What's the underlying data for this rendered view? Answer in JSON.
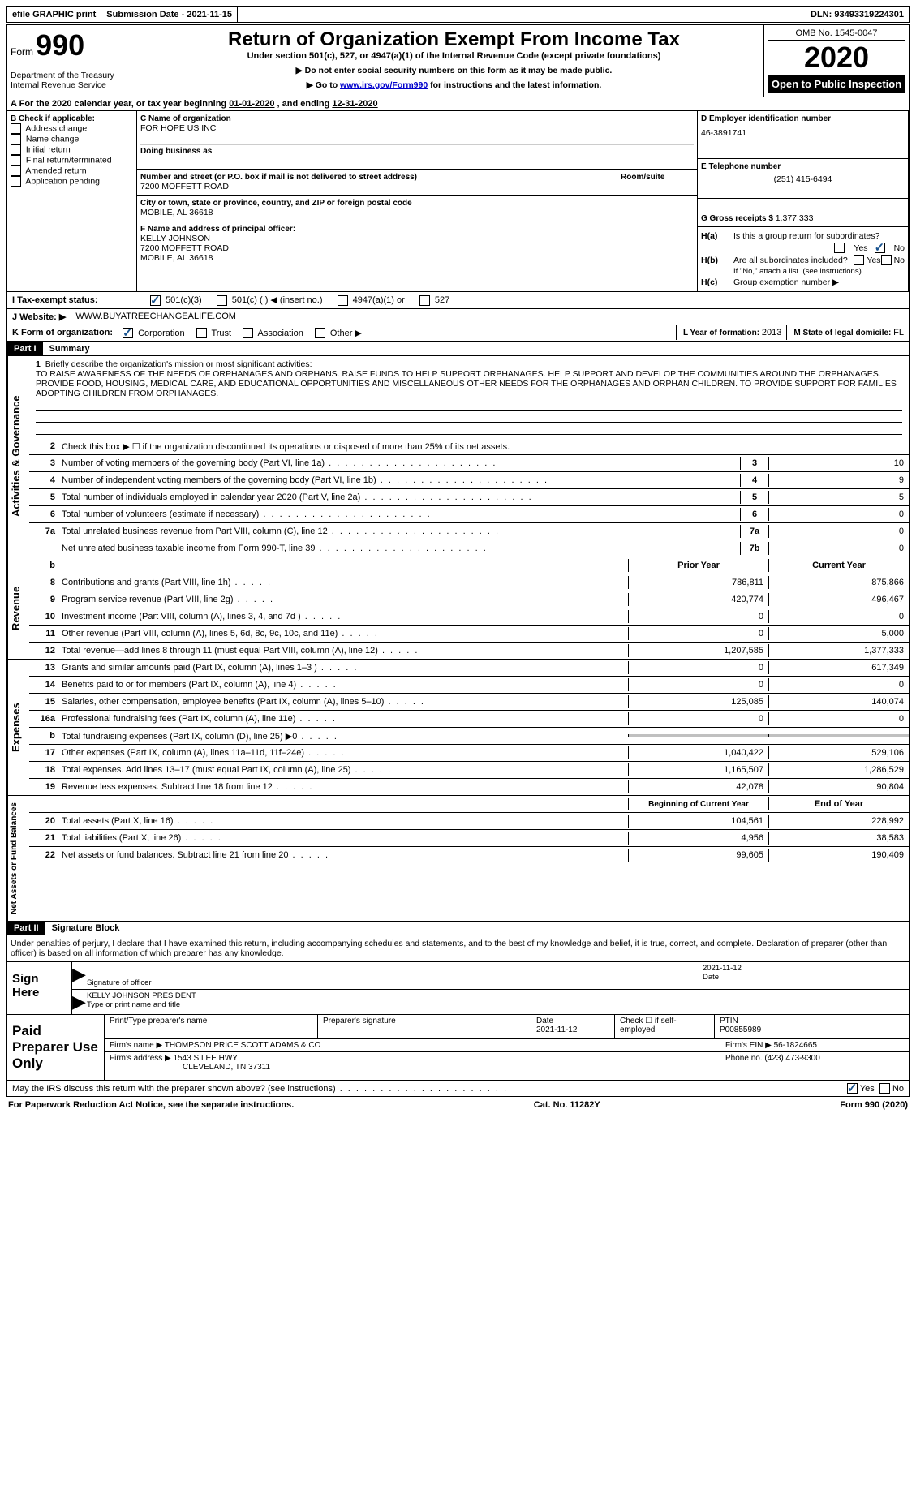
{
  "topbar": {
    "efile": "efile GRAPHIC print",
    "submission_label": "Submission Date - ",
    "submission_date": "2021-11-15",
    "dln_label": "DLN: ",
    "dln": "93493319224301"
  },
  "header": {
    "form_prefix": "Form",
    "form_no": "990",
    "dept": "Department of the Treasury",
    "irs": "Internal Revenue Service",
    "title": "Return of Organization Exempt From Income Tax",
    "subtitle": "Under section 501(c), 527, or 4947(a)(1) of the Internal Revenue Code (except private foundations)",
    "inst1": "▶ Do not enter social security numbers on this form as it may be made public.",
    "inst2_pre": "▶ Go to ",
    "inst2_link": "www.irs.gov/Form990",
    "inst2_post": " for instructions and the latest information.",
    "omb_label": "OMB No. ",
    "omb": "1545-0047",
    "year": "2020",
    "open": "Open to Public Inspection"
  },
  "sectionA": {
    "pre": "For the 2020 calendar year, or tax year beginning ",
    "begin": "01-01-2020",
    "mid": " , and ending ",
    "end": "12-31-2020"
  },
  "colB": {
    "title": "B Check if applicable:",
    "items": [
      "Address change",
      "Name change",
      "Initial return",
      "Final return/terminated",
      "Amended return",
      "Application pending"
    ],
    "checked": []
  },
  "colC": {
    "c_label": "C Name of organization",
    "c_name": "FOR HOPE US INC",
    "dba_label": "Doing business as",
    "addr_label": "Number and street (or P.O. box if mail is not delivered to street address)",
    "addr": "7200 MOFFETT ROAD",
    "room_label": "Room/suite",
    "city_label": "City or town, state or province, country, and ZIP or foreign postal code",
    "city": "MOBILE, AL  36618",
    "f_label": "F Name and address of principal officer:",
    "f_name": "KELLY JOHNSON",
    "f_addr1": "7200 MOFFETT ROAD",
    "f_addr2": "MOBILE, AL  36618"
  },
  "colD": {
    "d_label": "D Employer identification number",
    "d_val": "46-3891741",
    "e_label": "E Telephone number",
    "e_val": "(251) 415-6494",
    "g_label": "G Gross receipts $ ",
    "g_val": "1,377,333"
  },
  "rowI": {
    "label": "I     Tax-exempt status:",
    "opts": [
      "501(c)(3)",
      "501(c) (  ) ◀ (insert no.)",
      "4947(a)(1) or",
      "527"
    ],
    "checked_idx": 0
  },
  "rowH": {
    "ha_label": "H(a)",
    "ha_text": "Is this a group return for subordinates?",
    "ha_no_checked": true,
    "hb_label": "H(b)",
    "hb_text": "Are all subordinates included?",
    "hb_note": "If \"No,\" attach a list. (see instructions)",
    "hc_label": "H(c)",
    "hc_text": "Group exemption number ▶",
    "yes": "Yes",
    "no": "No"
  },
  "rowJ": {
    "label": "J     Website: ▶",
    "val": "WWW.BUYATREECHANGEALIFE.COM"
  },
  "rowK": {
    "label": "K Form of organization:",
    "opts": [
      "Corporation",
      "Trust",
      "Association",
      "Other ▶"
    ],
    "checked_idx": 0,
    "l_label": "L Year of formation: ",
    "l_val": "2013",
    "m_label": "M State of legal domicile: ",
    "m_val": "FL"
  },
  "part1": {
    "header": "Part I",
    "title": "Summary",
    "q1_label": "1",
    "q1_prompt": "Briefly describe the organization's mission or most significant activities:",
    "q1_text": "TO RAISE AWARENESS OF THE NEEDS OF ORPHANAGES AND ORPHANS. RAISE FUNDS TO HELP SUPPORT ORPHANAGES. HELP SUPPORT AND DEVELOP THE COMMUNITIES AROUND THE ORPHANAGES. PROVIDE FOOD, HOUSING, MEDICAL CARE, AND EDUCATIONAL OPPORTUNITIES AND MISCELLANEOUS OTHER NEEDS FOR THE ORPHANAGES AND ORPHAN CHILDREN. TO PROVIDE SUPPORT FOR FAMILIES ADOPTING CHILDREN FROM ORPHANAGES.",
    "q2": "Check this box ▶ ☐  if the organization discontinued its operations or disposed of more than 25% of its net assets.",
    "gov_rows": [
      {
        "n": "3",
        "t": "Number of voting members of the governing body (Part VI, line 1a)",
        "c": "3",
        "v": "10"
      },
      {
        "n": "4",
        "t": "Number of independent voting members of the governing body (Part VI, line 1b)",
        "c": "4",
        "v": "9"
      },
      {
        "n": "5",
        "t": "Total number of individuals employed in calendar year 2020 (Part V, line 2a)",
        "c": "5",
        "v": "5"
      },
      {
        "n": "6",
        "t": "Total number of volunteers (estimate if necessary)",
        "c": "6",
        "v": "0"
      },
      {
        "n": "7a",
        "t": "Total unrelated business revenue from Part VIII, column (C), line 12",
        "c": "7a",
        "v": "0"
      },
      {
        "n": "",
        "t": "Net unrelated business taxable income from Form 990-T, line 39",
        "c": "7b",
        "v": "0"
      }
    ],
    "col_prior": "Prior Year",
    "col_current": "Current Year",
    "revenue_rows": [
      {
        "n": "8",
        "t": "Contributions and grants (Part VIII, line 1h)",
        "p": "786,811",
        "c": "875,866"
      },
      {
        "n": "9",
        "t": "Program service revenue (Part VIII, line 2g)",
        "p": "420,774",
        "c": "496,467"
      },
      {
        "n": "10",
        "t": "Investment income (Part VIII, column (A), lines 3, 4, and 7d )",
        "p": "0",
        "c": "0"
      },
      {
        "n": "11",
        "t": "Other revenue (Part VIII, column (A), lines 5, 6d, 8c, 9c, 10c, and 11e)",
        "p": "0",
        "c": "5,000"
      },
      {
        "n": "12",
        "t": "Total revenue—add lines 8 through 11 (must equal Part VIII, column (A), line 12)",
        "p": "1,207,585",
        "c": "1,377,333"
      }
    ],
    "expense_rows": [
      {
        "n": "13",
        "t": "Grants and similar amounts paid (Part IX, column (A), lines 1–3 )",
        "p": "0",
        "c": "617,349"
      },
      {
        "n": "14",
        "t": "Benefits paid to or for members (Part IX, column (A), line 4)",
        "p": "0",
        "c": "0"
      },
      {
        "n": "15",
        "t": "Salaries, other compensation, employee benefits (Part IX, column (A), lines 5–10)",
        "p": "125,085",
        "c": "140,074"
      },
      {
        "n": "16a",
        "t": "Professional fundraising fees (Part IX, column (A), line 11e)",
        "p": "0",
        "c": "0"
      },
      {
        "n": "b",
        "t": "Total fundraising expenses (Part IX, column (D), line 25) ▶0",
        "p": "",
        "c": "",
        "shaded": true
      },
      {
        "n": "17",
        "t": "Other expenses (Part IX, column (A), lines 11a–11d, 11f–24e)",
        "p": "1,040,422",
        "c": "529,106"
      },
      {
        "n": "18",
        "t": "Total expenses. Add lines 13–17 (must equal Part IX, column (A), line 25)",
        "p": "1,165,507",
        "c": "1,286,529"
      },
      {
        "n": "19",
        "t": "Revenue less expenses. Subtract line 18 from line 12",
        "p": "42,078",
        "c": "90,804"
      }
    ],
    "col_begin": "Beginning of Current Year",
    "col_end": "End of Year",
    "net_rows": [
      {
        "n": "20",
        "t": "Total assets (Part X, line 16)",
        "p": "104,561",
        "c": "228,992"
      },
      {
        "n": "21",
        "t": "Total liabilities (Part X, line 26)",
        "p": "4,956",
        "c": "38,583"
      },
      {
        "n": "22",
        "t": "Net assets or fund balances. Subtract line 21 from line 20",
        "p": "99,605",
        "c": "190,409"
      }
    ],
    "vert_gov": "Activities & Governance",
    "vert_rev": "Revenue",
    "vert_exp": "Expenses",
    "vert_net": "Net Assets or Fund Balances"
  },
  "part2": {
    "header": "Part II",
    "title": "Signature Block",
    "declaration": "Under penalties of perjury, I declare that I have examined this return, including accompanying schedules and statements, and to the best of my knowledge and belief, it is true, correct, and complete. Declaration of preparer (other than officer) is based on all information of which preparer has any knowledge.",
    "sign_here": "Sign Here",
    "sig_officer_label": "Signature of officer",
    "sig_date": "2021-11-12",
    "date_label": "Date",
    "officer_name": "KELLY JOHNSON  PRESIDENT",
    "officer_label": "Type or print name and title",
    "paid_label": "Paid Preparer Use Only",
    "prep_name_label": "Print/Type preparer's name",
    "prep_sig_label": "Preparer's signature",
    "prep_date_label": "Date",
    "prep_date": "2021-11-12",
    "prep_check_label": "Check ☐ if self-employed",
    "ptin_label": "PTIN",
    "ptin": "P00855989",
    "firm_name_label": "Firm's name    ▶ ",
    "firm_name": "THOMPSON PRICE SCOTT ADAMS & CO",
    "firm_ein_label": "Firm's EIN ▶ ",
    "firm_ein": "56-1824665",
    "firm_addr_label": "Firm's address ▶ ",
    "firm_addr1": "1543 S LEE HWY",
    "firm_addr2": "CLEVELAND, TN  37311",
    "phone_label": "Phone no. ",
    "phone": "(423) 473-9300",
    "discuss": "May the IRS discuss this return with the preparer shown above? (see instructions)",
    "discuss_yes_checked": true
  },
  "footer": {
    "left": "For Paperwork Reduction Act Notice, see the separate instructions.",
    "mid": "Cat. No. 11282Y",
    "right": "Form 990 (2020)"
  }
}
